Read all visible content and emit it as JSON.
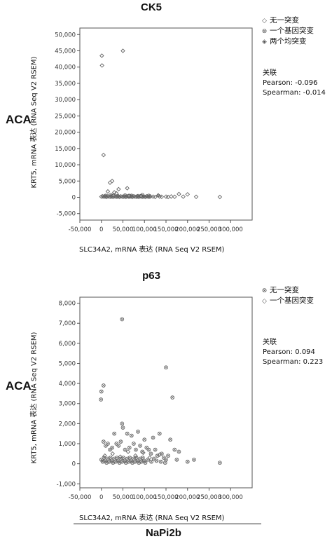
{
  "chart_data": [
    {
      "type": "scatter",
      "title": "CK5",
      "row_label": "ACA",
      "xlabel": "SLC34A2, mRNA 表达 (RNA Seq V2 RSEM)",
      "ylabel": "KRT5, mRNA 表达 (RNA Seq V2 RSEM)",
      "xlim": [
        -50000,
        350000
      ],
      "ylim": [
        -7000,
        52000
      ],
      "x_ticks": [
        -50000,
        0,
        50000,
        100000,
        150000,
        200000,
        250000,
        300000
      ],
      "x_tick_labels": [
        "-50,000",
        "0",
        "50,000",
        "100,000",
        "150,000",
        "200,000",
        "250,000",
        "300,000"
      ],
      "y_ticks": [
        -5000,
        0,
        5000,
        10000,
        15000,
        20000,
        25000,
        30000,
        35000,
        40000,
        45000,
        50000
      ],
      "y_tick_labels": [
        "-5,000",
        "0",
        "5,000",
        "10,000",
        "15,000",
        "20,000",
        "25,000",
        "30,000",
        "35,000",
        "40,000",
        "45,000",
        "50,000"
      ],
      "legend_position": "right",
      "legend": [
        "无一突变",
        "一个基因突变",
        "两个均突变"
      ],
      "correlation": {
        "heading": "关联",
        "pearson": "Pearson: -0.096",
        "spearman": "Spearman: -0.014"
      },
      "series": [
        {
          "name": "无一突变",
          "points": [
            [
              1000,
              43500
            ],
            [
              1500,
              40500
            ],
            [
              50000,
              45000
            ],
            [
              5000,
              13000
            ],
            [
              20000,
              4500
            ],
            [
              25000,
              5000
            ],
            [
              15000,
              1800
            ],
            [
              30000,
              1500
            ],
            [
              40000,
              2500
            ],
            [
              60000,
              2800
            ],
            [
              35000,
              1200
            ],
            [
              0,
              200
            ],
            [
              3000,
              300
            ],
            [
              6000,
              150
            ],
            [
              9000,
              250
            ],
            [
              12000,
              100
            ],
            [
              15000,
              300
            ],
            [
              18000,
              200
            ],
            [
              21000,
              150
            ],
            [
              24000,
              250
            ],
            [
              27000,
              100
            ],
            [
              30000,
              300
            ],
            [
              33000,
              200
            ],
            [
              36000,
              150
            ],
            [
              39000,
              250
            ],
            [
              42000,
              100
            ],
            [
              45000,
              300
            ],
            [
              48000,
              200
            ],
            [
              51000,
              150
            ],
            [
              54000,
              250
            ],
            [
              57000,
              100
            ],
            [
              60000,
              300
            ],
            [
              63000,
              200
            ],
            [
              66000,
              150
            ],
            [
              69000,
              250
            ],
            [
              72000,
              100
            ],
            [
              75000,
              300
            ],
            [
              78000,
              200
            ],
            [
              81000,
              150
            ],
            [
              84000,
              250
            ],
            [
              87000,
              100
            ],
            [
              90000,
              300
            ],
            [
              93000,
              200
            ],
            [
              96000,
              150
            ],
            [
              99000,
              250
            ],
            [
              102000,
              100
            ],
            [
              105000,
              300
            ],
            [
              108000,
              200
            ],
            [
              111000,
              150
            ],
            [
              114000,
              250
            ],
            [
              120000,
              200
            ],
            [
              125000,
              100
            ],
            [
              135000,
              250
            ],
            [
              140000,
              150
            ],
            [
              150000,
              200
            ],
            [
              155000,
              100
            ],
            [
              162000,
              250
            ],
            [
              170000,
              150
            ],
            [
              180000,
              1000
            ],
            [
              190000,
              200
            ],
            [
              200000,
              900
            ],
            [
              220000,
              150
            ],
            [
              275000,
              100
            ]
          ]
        },
        {
          "name": "一个基因突变",
          "points": [
            [
              10000,
              500
            ],
            [
              22000,
              700
            ],
            [
              38000,
              400
            ],
            [
              55000,
              600
            ],
            [
              70000,
              500
            ],
            [
              85000,
              400
            ],
            [
              95000,
              700
            ],
            [
              110000,
              500
            ]
          ]
        },
        {
          "name": "两个均突变",
          "points": [
            [
              28000,
              600
            ],
            [
              64000,
              500
            ],
            [
              92000,
              400
            ],
            [
              132000,
              600
            ]
          ]
        }
      ]
    },
    {
      "type": "scatter",
      "title": "p63",
      "row_label": "ACA",
      "xlabel": "SLC34A2, mRNA  表达 (RNA Seq V2 RSEM)",
      "ylabel": "KRT5, mRNA 表达 (RNA Seq V2 RSEM)",
      "xlim": [
        -50000,
        350000
      ],
      "ylim": [
        -1200,
        8300
      ],
      "x_ticks": [
        -50000,
        0,
        50000,
        100000,
        150000,
        200000,
        250000,
        300000
      ],
      "x_tick_labels": [
        "-50,000",
        "0",
        "50,000",
        "100,000",
        "150,000",
        "200,000",
        "250,000",
        "300,000"
      ],
      "y_ticks": [
        -1000,
        0,
        1000,
        2000,
        3000,
        4000,
        5000,
        6000,
        7000,
        8000
      ],
      "y_tick_labels": [
        "-1,000",
        "0",
        "1,000",
        "2,000",
        "3,000",
        "4,000",
        "5,000",
        "6,000",
        "7,000",
        "8,000"
      ],
      "legend_position": "right",
      "legend": [
        "无一突变",
        "一个基因突变"
      ],
      "correlation": {
        "heading": "关联",
        "pearson": "Pearson: 0.094",
        "spearman": "Spearman: 0.223"
      },
      "series": [
        {
          "name": "无一突变",
          "points": [
            [
              48000,
              7200
            ],
            [
              5000,
              3900
            ],
            [
              0,
              3600
            ],
            [
              -1000,
              3200
            ],
            [
              150000,
              4800
            ],
            [
              165000,
              3300
            ],
            [
              48000,
              2000
            ],
            [
              50000,
              1800
            ],
            [
              30000,
              1500
            ],
            [
              60000,
              1500
            ],
            [
              70000,
              1400
            ],
            [
              85000,
              1600
            ],
            [
              100000,
              1200
            ],
            [
              120000,
              1300
            ],
            [
              135000,
              1500
            ],
            [
              160000,
              1200
            ],
            [
              170000,
              700
            ],
            [
              180000,
              600
            ],
            [
              5000,
              1100
            ],
            [
              10000,
              900
            ],
            [
              15000,
              1000
            ],
            [
              20000,
              700
            ],
            [
              25000,
              800
            ],
            [
              35000,
              1000
            ],
            [
              40000,
              900
            ],
            [
              45000,
              1100
            ],
            [
              55000,
              700
            ],
            [
              65000,
              800
            ],
            [
              75000,
              1000
            ],
            [
              80000,
              700
            ],
            [
              90000,
              900
            ],
            [
              95000,
              600
            ],
            [
              105000,
              800
            ],
            [
              110000,
              700
            ],
            [
              115000,
              500
            ],
            [
              125000,
              700
            ],
            [
              130000,
              400
            ],
            [
              140000,
              500
            ],
            [
              145000,
              300
            ],
            [
              150000,
              200
            ],
            [
              155000,
              400
            ],
            [
              0,
              200
            ],
            [
              3000,
              100
            ],
            [
              6000,
              300
            ],
            [
              9000,
              150
            ],
            [
              12000,
              50
            ],
            [
              15000,
              250
            ],
            [
              18000,
              100
            ],
            [
              21000,
              300
            ],
            [
              24000,
              150
            ],
            [
              27000,
              50
            ],
            [
              30000,
              250
            ],
            [
              33000,
              100
            ],
            [
              36000,
              300
            ],
            [
              39000,
              150
            ],
            [
              42000,
              50
            ],
            [
              45000,
              250
            ],
            [
              48000,
              100
            ],
            [
              51000,
              300
            ],
            [
              54000,
              150
            ],
            [
              57000,
              50
            ],
            [
              60000,
              250
            ],
            [
              63000,
              100
            ],
            [
              66000,
              300
            ],
            [
              69000,
              150
            ],
            [
              72000,
              50
            ],
            [
              75000,
              250
            ],
            [
              78000,
              100
            ],
            [
              81000,
              300
            ],
            [
              84000,
              150
            ],
            [
              87000,
              50
            ],
            [
              90000,
              250
            ],
            [
              93000,
              100
            ],
            [
              96000,
              300
            ],
            [
              99000,
              150
            ],
            [
              102000,
              50
            ],
            [
              108000,
              200
            ],
            [
              116000,
              100
            ],
            [
              122000,
              250
            ],
            [
              128000,
              150
            ],
            [
              138000,
              100
            ],
            [
              148000,
              50
            ],
            [
              175000,
              200
            ],
            [
              200000,
              100
            ],
            [
              215000,
              200
            ],
            [
              275000,
              50
            ]
          ]
        },
        {
          "name": "一个基因突变",
          "points": [
            [
              8000,
              400
            ],
            [
              26000,
              500
            ],
            [
              44000,
              350
            ],
            [
              62000,
              600
            ],
            [
              79000,
              400
            ],
            [
              97000,
              550
            ],
            [
              112000,
              300
            ],
            [
              135000,
              450
            ]
          ]
        }
      ]
    }
  ],
  "bottom_label": "NaPi2b"
}
